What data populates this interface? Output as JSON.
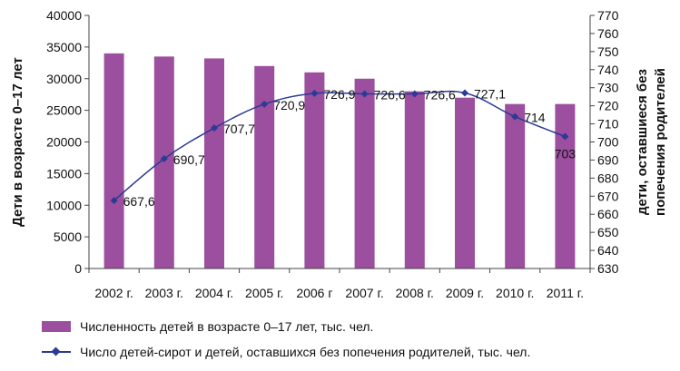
{
  "chart_data": {
    "type": "bar+line",
    "categories": [
      "2002 г.",
      "2003 г.",
      "2004 г.",
      "2005 г.",
      "2006 г",
      "2007 г.",
      "2008 г.",
      "2009 г.",
      "2010 г.",
      "2011 г."
    ],
    "left_axis": {
      "label": "Дети в возрасте 0–17 лет",
      "ylim": [
        0,
        40000
      ],
      "ticks": [
        0,
        5000,
        10000,
        15000,
        20000,
        25000,
        30000,
        35000,
        40000
      ]
    },
    "right_axis": {
      "label_line1": "дети, оставшиеся без",
      "label_line2": "попечения родителей",
      "ylim": [
        630,
        770
      ],
      "ticks": [
        630,
        640,
        650,
        660,
        670,
        680,
        690,
        700,
        710,
        720,
        730,
        740,
        750,
        760,
        770
      ]
    },
    "series": [
      {
        "name": "Численность детей в возрасте 0–17 лет, тыс. чел.",
        "type": "bar",
        "axis": "left",
        "color": "#9b4f9e",
        "values": [
          34000,
          33500,
          33200,
          32000,
          31000,
          30000,
          28000,
          27000,
          26000,
          26000
        ]
      },
      {
        "name": "Число детей-сирот и детей, оставшихся без попечения родителей, тыс. чел.",
        "type": "line",
        "axis": "right",
        "color": "#2b3a94",
        "values": [
          667.6,
          690.7,
          707.7,
          720.9,
          726.9,
          726.6,
          726.6,
          727.1,
          714,
          703
        ],
        "labels": [
          "667,6",
          "690,7",
          "707,7",
          "720,9",
          "726,9",
          "726,6",
          "726,6",
          "727,1",
          "714",
          "703"
        ]
      }
    ],
    "grid": false,
    "legend_position": "bottom"
  }
}
